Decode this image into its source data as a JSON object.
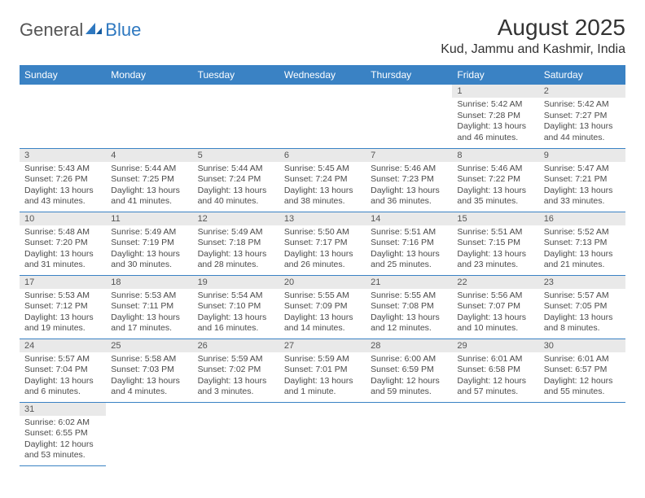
{
  "logo": {
    "word1": "General",
    "word2": "Blue"
  },
  "title": "August 2025",
  "location": "Kud, Jammu and Kashmir, India",
  "colors": {
    "accent": "#3a82c4",
    "dayHeaderBg": "#e9e9e9"
  },
  "weekdays": [
    "Sunday",
    "Monday",
    "Tuesday",
    "Wednesday",
    "Thursday",
    "Friday",
    "Saturday"
  ],
  "weeks": [
    [
      null,
      null,
      null,
      null,
      null,
      {
        "n": "1",
        "sunrise": "Sunrise: 5:42 AM",
        "sunset": "Sunset: 7:28 PM",
        "daylight": "Daylight: 13 hours and 46 minutes."
      },
      {
        "n": "2",
        "sunrise": "Sunrise: 5:42 AM",
        "sunset": "Sunset: 7:27 PM",
        "daylight": "Daylight: 13 hours and 44 minutes."
      }
    ],
    [
      {
        "n": "3",
        "sunrise": "Sunrise: 5:43 AM",
        "sunset": "Sunset: 7:26 PM",
        "daylight": "Daylight: 13 hours and 43 minutes."
      },
      {
        "n": "4",
        "sunrise": "Sunrise: 5:44 AM",
        "sunset": "Sunset: 7:25 PM",
        "daylight": "Daylight: 13 hours and 41 minutes."
      },
      {
        "n": "5",
        "sunrise": "Sunrise: 5:44 AM",
        "sunset": "Sunset: 7:24 PM",
        "daylight": "Daylight: 13 hours and 40 minutes."
      },
      {
        "n": "6",
        "sunrise": "Sunrise: 5:45 AM",
        "sunset": "Sunset: 7:24 PM",
        "daylight": "Daylight: 13 hours and 38 minutes."
      },
      {
        "n": "7",
        "sunrise": "Sunrise: 5:46 AM",
        "sunset": "Sunset: 7:23 PM",
        "daylight": "Daylight: 13 hours and 36 minutes."
      },
      {
        "n": "8",
        "sunrise": "Sunrise: 5:46 AM",
        "sunset": "Sunset: 7:22 PM",
        "daylight": "Daylight: 13 hours and 35 minutes."
      },
      {
        "n": "9",
        "sunrise": "Sunrise: 5:47 AM",
        "sunset": "Sunset: 7:21 PM",
        "daylight": "Daylight: 13 hours and 33 minutes."
      }
    ],
    [
      {
        "n": "10",
        "sunrise": "Sunrise: 5:48 AM",
        "sunset": "Sunset: 7:20 PM",
        "daylight": "Daylight: 13 hours and 31 minutes."
      },
      {
        "n": "11",
        "sunrise": "Sunrise: 5:49 AM",
        "sunset": "Sunset: 7:19 PM",
        "daylight": "Daylight: 13 hours and 30 minutes."
      },
      {
        "n": "12",
        "sunrise": "Sunrise: 5:49 AM",
        "sunset": "Sunset: 7:18 PM",
        "daylight": "Daylight: 13 hours and 28 minutes."
      },
      {
        "n": "13",
        "sunrise": "Sunrise: 5:50 AM",
        "sunset": "Sunset: 7:17 PM",
        "daylight": "Daylight: 13 hours and 26 minutes."
      },
      {
        "n": "14",
        "sunrise": "Sunrise: 5:51 AM",
        "sunset": "Sunset: 7:16 PM",
        "daylight": "Daylight: 13 hours and 25 minutes."
      },
      {
        "n": "15",
        "sunrise": "Sunrise: 5:51 AM",
        "sunset": "Sunset: 7:15 PM",
        "daylight": "Daylight: 13 hours and 23 minutes."
      },
      {
        "n": "16",
        "sunrise": "Sunrise: 5:52 AM",
        "sunset": "Sunset: 7:13 PM",
        "daylight": "Daylight: 13 hours and 21 minutes."
      }
    ],
    [
      {
        "n": "17",
        "sunrise": "Sunrise: 5:53 AM",
        "sunset": "Sunset: 7:12 PM",
        "daylight": "Daylight: 13 hours and 19 minutes."
      },
      {
        "n": "18",
        "sunrise": "Sunrise: 5:53 AM",
        "sunset": "Sunset: 7:11 PM",
        "daylight": "Daylight: 13 hours and 17 minutes."
      },
      {
        "n": "19",
        "sunrise": "Sunrise: 5:54 AM",
        "sunset": "Sunset: 7:10 PM",
        "daylight": "Daylight: 13 hours and 16 minutes."
      },
      {
        "n": "20",
        "sunrise": "Sunrise: 5:55 AM",
        "sunset": "Sunset: 7:09 PM",
        "daylight": "Daylight: 13 hours and 14 minutes."
      },
      {
        "n": "21",
        "sunrise": "Sunrise: 5:55 AM",
        "sunset": "Sunset: 7:08 PM",
        "daylight": "Daylight: 13 hours and 12 minutes."
      },
      {
        "n": "22",
        "sunrise": "Sunrise: 5:56 AM",
        "sunset": "Sunset: 7:07 PM",
        "daylight": "Daylight: 13 hours and 10 minutes."
      },
      {
        "n": "23",
        "sunrise": "Sunrise: 5:57 AM",
        "sunset": "Sunset: 7:05 PM",
        "daylight": "Daylight: 13 hours and 8 minutes."
      }
    ],
    [
      {
        "n": "24",
        "sunrise": "Sunrise: 5:57 AM",
        "sunset": "Sunset: 7:04 PM",
        "daylight": "Daylight: 13 hours and 6 minutes."
      },
      {
        "n": "25",
        "sunrise": "Sunrise: 5:58 AM",
        "sunset": "Sunset: 7:03 PM",
        "daylight": "Daylight: 13 hours and 4 minutes."
      },
      {
        "n": "26",
        "sunrise": "Sunrise: 5:59 AM",
        "sunset": "Sunset: 7:02 PM",
        "daylight": "Daylight: 13 hours and 3 minutes."
      },
      {
        "n": "27",
        "sunrise": "Sunrise: 5:59 AM",
        "sunset": "Sunset: 7:01 PM",
        "daylight": "Daylight: 13 hours and 1 minute."
      },
      {
        "n": "28",
        "sunrise": "Sunrise: 6:00 AM",
        "sunset": "Sunset: 6:59 PM",
        "daylight": "Daylight: 12 hours and 59 minutes."
      },
      {
        "n": "29",
        "sunrise": "Sunrise: 6:01 AM",
        "sunset": "Sunset: 6:58 PM",
        "daylight": "Daylight: 12 hours and 57 minutes."
      },
      {
        "n": "30",
        "sunrise": "Sunrise: 6:01 AM",
        "sunset": "Sunset: 6:57 PM",
        "daylight": "Daylight: 12 hours and 55 minutes."
      }
    ],
    [
      {
        "n": "31",
        "sunrise": "Sunrise: 6:02 AM",
        "sunset": "Sunset: 6:55 PM",
        "daylight": "Daylight: 12 hours and 53 minutes."
      },
      null,
      null,
      null,
      null,
      null,
      null
    ]
  ]
}
